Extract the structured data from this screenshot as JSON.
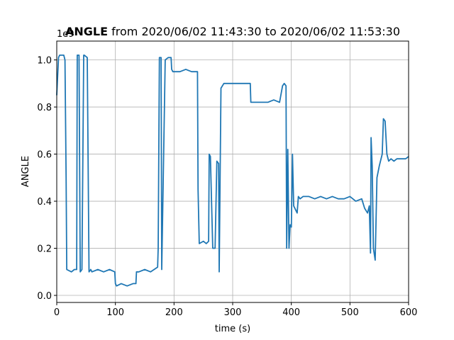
{
  "chart_data": {
    "type": "line",
    "title_bold": "ANGLE",
    "title_rest": " from 2020/06/02 11:43:30 to 2020/06/02 11:53:30",
    "xlabel": "time (s)",
    "ylabel": "ANGLE",
    "y_offset_text": "1e9",
    "xlim": [
      0,
      600
    ],
    "ylim": [
      -0.03,
      1.08
    ],
    "x_ticks": [
      0,
      100,
      200,
      300,
      400,
      500,
      600
    ],
    "x_tick_labels": [
      "0",
      "100",
      "200",
      "300",
      "400",
      "500",
      "600"
    ],
    "y_ticks": [
      0.0,
      0.2,
      0.4,
      0.6,
      0.8,
      1.0
    ],
    "y_tick_labels": [
      "0.0",
      "0.2",
      "0.4",
      "0.6",
      "0.8",
      "1.0"
    ],
    "grid": true,
    "line_color": "#1f77b4",
    "series": [
      {
        "x": [
          0,
          3,
          5,
          12,
          14,
          16,
          17,
          25,
          30,
          34,
          35,
          38,
          40,
          43,
          46,
          47,
          52,
          55,
          58,
          60,
          70,
          80,
          90,
          99,
          100,
          102,
          110,
          120,
          130,
          135,
          136,
          140,
          150,
          160,
          172,
          173,
          175,
          178,
          179,
          185,
          190,
          195,
          196,
          198,
          203,
          210,
          220,
          230,
          240,
          241,
          243,
          250,
          255,
          259,
          260,
          262,
          266,
          270,
          273,
          276,
          277,
          280,
          285,
          290,
          300,
          310,
          320,
          330,
          331,
          340,
          350,
          360,
          370,
          380,
          385,
          388,
          391,
          392,
          394,
          396,
          398,
          400,
          402,
          404,
          410,
          412,
          415,
          420,
          430,
          440,
          450,
          460,
          470,
          480,
          490,
          500,
          510,
          520,
          525,
          530,
          533,
          535,
          536,
          538,
          540,
          543,
          546,
          550,
          555,
          557,
          560,
          563,
          566,
          570,
          575,
          580,
          585,
          590,
          595,
          600
        ],
        "y": [
          0.85,
          1.01,
          1.02,
          1.02,
          1.0,
          0.5,
          0.11,
          0.1,
          0.11,
          0.11,
          1.02,
          1.02,
          0.1,
          0.11,
          1.02,
          1.02,
          1.01,
          0.1,
          0.11,
          0.1,
          0.11,
          0.1,
          0.11,
          0.1,
          0.05,
          0.04,
          0.05,
          0.04,
          0.05,
          0.05,
          0.1,
          0.1,
          0.11,
          0.1,
          0.12,
          0.2,
          1.01,
          1.01,
          0.11,
          1.0,
          1.01,
          1.01,
          0.96,
          0.95,
          0.95,
          0.95,
          0.96,
          0.95,
          0.95,
          0.45,
          0.22,
          0.23,
          0.22,
          0.23,
          0.6,
          0.59,
          0.2,
          0.2,
          0.57,
          0.56,
          0.1,
          0.88,
          0.9,
          0.9,
          0.9,
          0.9,
          0.9,
          0.9,
          0.82,
          0.82,
          0.82,
          0.82,
          0.83,
          0.82,
          0.89,
          0.9,
          0.89,
          0.2,
          0.62,
          0.2,
          0.3,
          0.29,
          0.6,
          0.38,
          0.35,
          0.42,
          0.41,
          0.42,
          0.42,
          0.41,
          0.42,
          0.41,
          0.42,
          0.41,
          0.41,
          0.42,
          0.4,
          0.41,
          0.37,
          0.35,
          0.38,
          0.18,
          0.67,
          0.55,
          0.2,
          0.15,
          0.5,
          0.55,
          0.6,
          0.75,
          0.74,
          0.6,
          0.57,
          0.58,
          0.57,
          0.58,
          0.58,
          0.58,
          0.58,
          0.59
        ]
      }
    ]
  }
}
